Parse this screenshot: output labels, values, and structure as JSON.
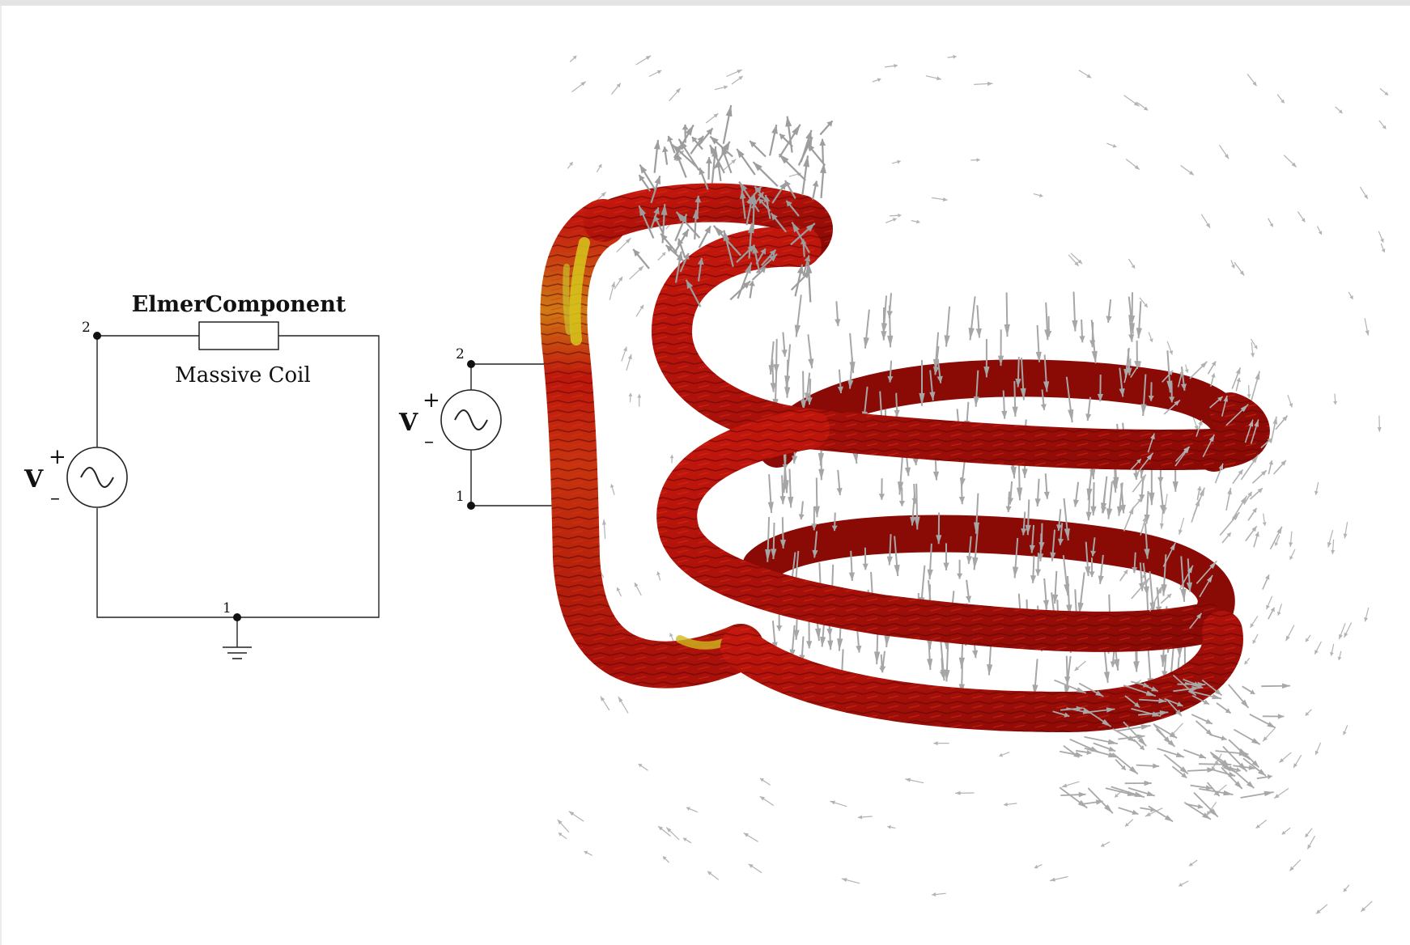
{
  "circuit_left": {
    "component_label": "ElmerComponent",
    "component_sublabel": "Massive Coil",
    "source_label": "V",
    "plus_sign": "+",
    "minus_sign": "–",
    "node_top": "2",
    "node_bottom": "1"
  },
  "circuit_right": {
    "source_label": "V",
    "plus_sign": "+",
    "minus_sign": "–",
    "node_top": "2",
    "node_bottom": "1"
  },
  "colors": {
    "coil_red": "#b5120b",
    "coil_dark": "#7a0805",
    "coil_yellow": "#d8c21c",
    "field_arrow": "#a9a9a9",
    "wire": "#222222"
  },
  "icons": {
    "ac_source": "sine-wave-in-circle",
    "ground": "ground-symbol",
    "resistor": "rectangle-box"
  }
}
